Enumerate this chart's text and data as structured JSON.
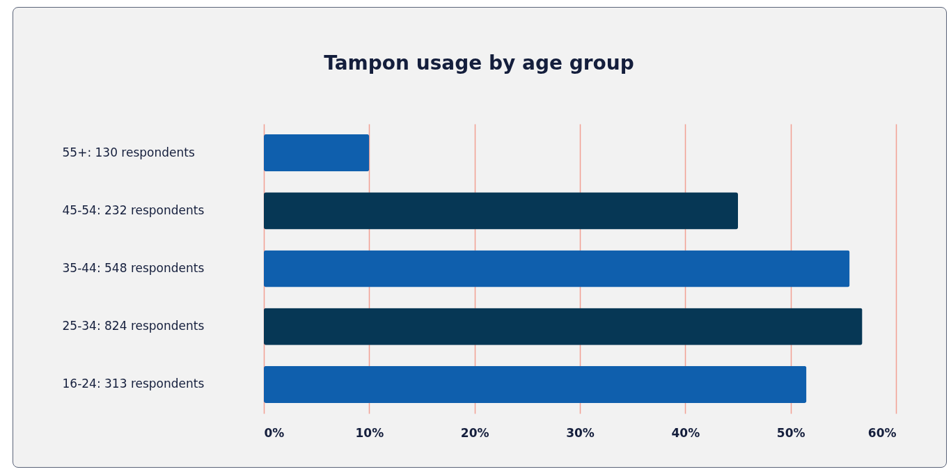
{
  "chart_data": {
    "type": "bar",
    "orientation": "horizontal",
    "title": "Tampon usage by age group",
    "categories": [
      "55+:  130 respondents",
      "45-54:  232 respondents",
      "35-44:  548 respondents",
      "25-34:  824 respondents",
      "16-24:  313 respondents"
    ],
    "values": [
      10,
      45,
      55.6,
      56.8,
      51.5
    ],
    "colors": [
      "#0f5fad",
      "#063755",
      "#0f5fad",
      "#063755",
      "#0f5fad"
    ],
    "xlim": [
      0,
      60
    ],
    "xticks": [
      {
        "value": 0,
        "label": "0%"
      },
      {
        "value": 10,
        "label": "10%"
      },
      {
        "value": 20,
        "label": "20%"
      },
      {
        "value": 30,
        "label": "30%"
      },
      {
        "value": 40,
        "label": "40%"
      },
      {
        "value": 50,
        "label": "50%"
      },
      {
        "value": 60,
        "label": "60%"
      }
    ],
    "grid": "x"
  }
}
